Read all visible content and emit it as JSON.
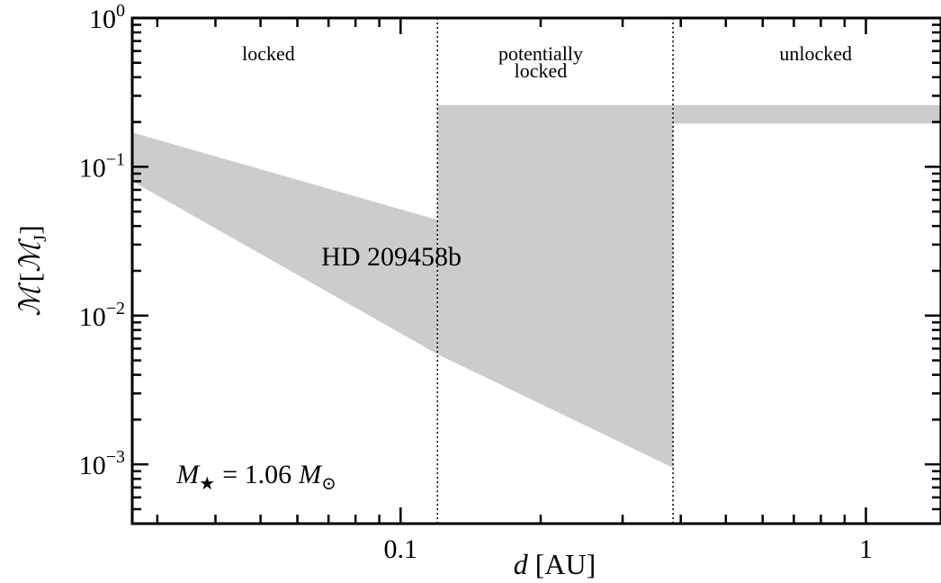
{
  "chart_data": {
    "type": "area",
    "title": "",
    "xscale": "log",
    "yscale": "log",
    "xlim": [
      0.0265,
      1.45
    ],
    "ylim": [
      0.0004,
      1.0
    ],
    "xlabel": {
      "italic": "d",
      "rest": "[AU]"
    },
    "ylabel": {
      "symbol": "ℳ",
      "open": "[",
      "symbol2": "ℳ",
      "sub": "J",
      "close": "]"
    },
    "x_ticks": [
      {
        "value": 0.1,
        "label": "0.1"
      },
      {
        "value": 1.0,
        "label": "1"
      }
    ],
    "y_ticks": [
      {
        "value": 1.0,
        "base": "10",
        "exp": "0"
      },
      {
        "value": 0.1,
        "base": "10",
        "exp": "−1"
      },
      {
        "value": 0.01,
        "base": "10",
        "exp": "−2"
      },
      {
        "value": 0.001,
        "base": "10",
        "exp": "−3"
      }
    ],
    "boundaries": [
      0.12,
      0.385
    ],
    "regions": [
      {
        "lines": [
          "locked"
        ],
        "x": 0.052
      },
      {
        "lines": [
          "potentially",
          "locked"
        ],
        "x": 0.2
      },
      {
        "lines": [
          "unlocked"
        ],
        "x": 0.78
      }
    ],
    "shaded_regions": [
      {
        "name": "locked",
        "polygon": [
          [
            0.0265,
            0.17
          ],
          [
            0.12,
            0.044
          ],
          [
            0.12,
            0.0055
          ],
          [
            0.0265,
            0.08
          ]
        ]
      },
      {
        "name": "potentially locked",
        "polygon": [
          [
            0.12,
            0.26
          ],
          [
            0.385,
            0.26
          ],
          [
            0.385,
            0.00095
          ],
          [
            0.12,
            0.0055
          ]
        ]
      },
      {
        "name": "unlocked",
        "polygon": [
          [
            0.385,
            0.26
          ],
          [
            1.45,
            0.26
          ],
          [
            1.45,
            0.195
          ],
          [
            0.385,
            0.195
          ]
        ]
      }
    ],
    "annotations": [
      {
        "text": "HD 209458b",
        "x": 0.071,
        "y": 0.025
      }
    ],
    "stellar_mass": {
      "lhs": "M",
      "lhs_sub": "★",
      "eq": "= 1.06",
      "rhs": "M",
      "rhs_sub": "⊙",
      "x": 0.033,
      "y": 0.00095
    },
    "fill_color": "#cccccc",
    "grid": false,
    "legend": "none"
  }
}
